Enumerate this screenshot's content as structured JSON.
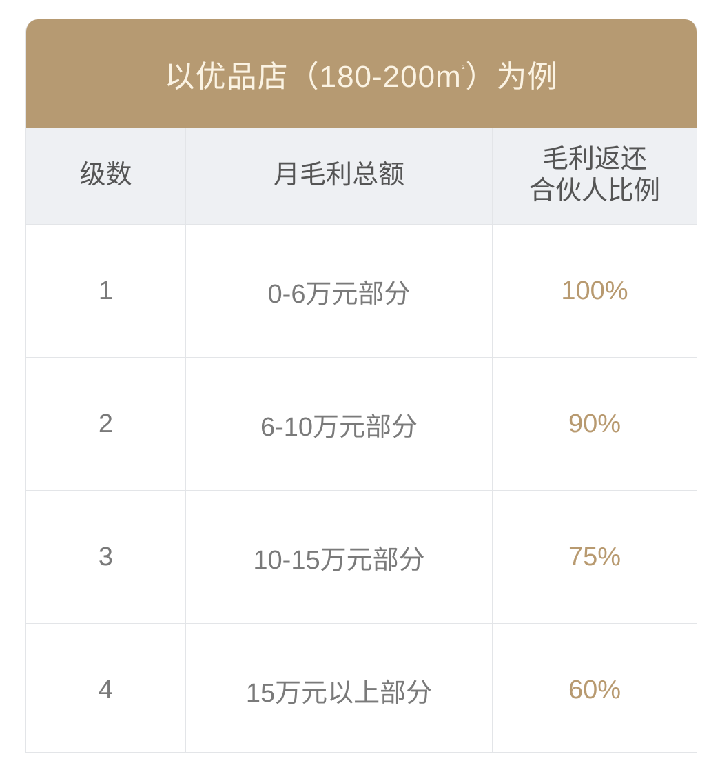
{
  "title": {
    "text": "以优品店（180-200m",
    "superscript": "²",
    "suffix": "）为例"
  },
  "columns": [
    "级数",
    "月毛利总额",
    "毛利返还\n合伙人比例"
  ],
  "columns_lines": {
    "third_line1": "毛利返还",
    "third_line2": "合伙人比例"
  },
  "rows": [
    {
      "level": "1",
      "range": "0-6万元部分",
      "ratio": "100%"
    },
    {
      "level": "2",
      "range": "6-10万元部分",
      "ratio": "90%"
    },
    {
      "level": "3",
      "range": "10-15万元部分",
      "ratio": "75%"
    },
    {
      "level": "4",
      "range": "15万元以上部分",
      "ratio": "60%"
    }
  ],
  "colors": {
    "title_bg": "#b69a72",
    "title_text": "#fbf3e3",
    "header_bg": "#eef0f3",
    "ratio_text": "#b89a70"
  }
}
